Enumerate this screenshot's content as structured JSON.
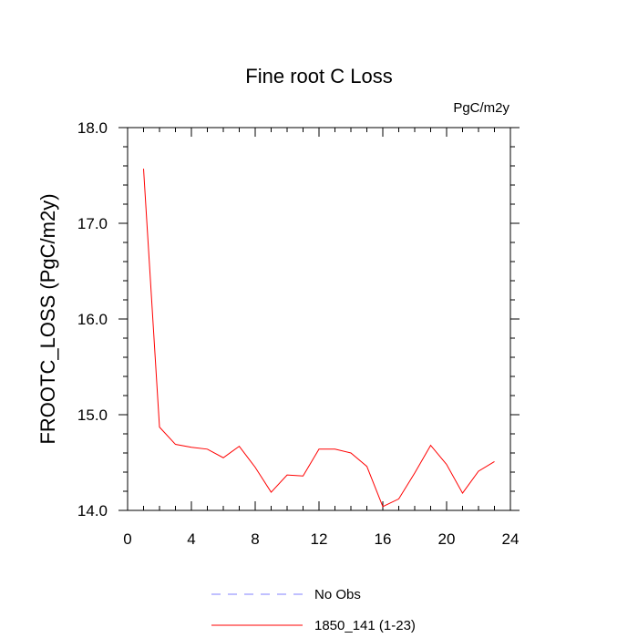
{
  "chart_data": {
    "type": "line",
    "title": "Fine root C Loss",
    "units": "PgC/m2y",
    "ylabel": "FROOTC_LOSS  (PgC/m2y)",
    "xlabel": "",
    "xlim": [
      0,
      24
    ],
    "ylim": [
      14.0,
      18.0
    ],
    "xticks": [
      "0",
      "4",
      "8",
      "12",
      "16",
      "20",
      "24"
    ],
    "yticks": [
      "14.0",
      "15.0",
      "16.0",
      "17.0",
      "18.0"
    ],
    "grid": false,
    "legend_position": "bottom",
    "series": [
      {
        "name": "No Obs",
        "color": "#8080ff",
        "dash": "dashed",
        "x": [],
        "y": []
      },
      {
        "name": "1850_141 (1-23)",
        "color": "#ff0000",
        "dash": "solid",
        "x": [
          1,
          2,
          3,
          4,
          5,
          6,
          7,
          8,
          9,
          10,
          11,
          12,
          13,
          14,
          15,
          16,
          17,
          18,
          19,
          20,
          21,
          22,
          23
        ],
        "y": [
          17.57,
          14.87,
          14.69,
          14.66,
          14.64,
          14.55,
          14.67,
          14.45,
          14.19,
          14.37,
          14.36,
          14.64,
          14.64,
          14.6,
          14.46,
          14.04,
          14.12,
          14.39,
          14.68,
          14.48,
          14.18,
          14.41,
          14.51
        ]
      }
    ]
  }
}
